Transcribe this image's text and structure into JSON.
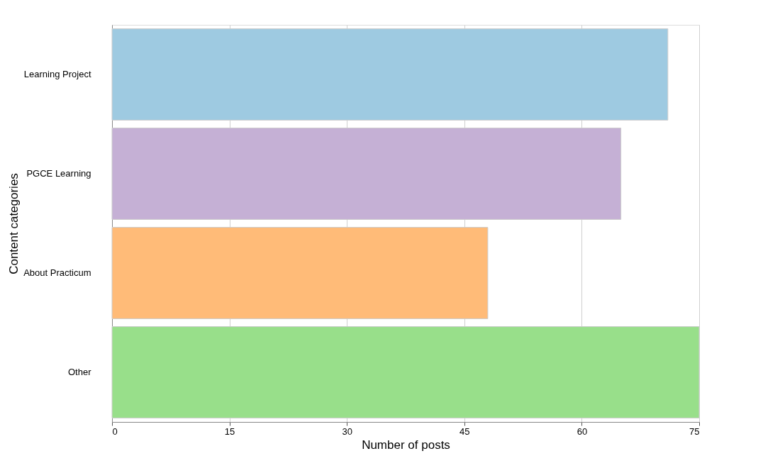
{
  "chart_data": {
    "type": "bar",
    "orientation": "horizontal",
    "xlabel": "Number of posts",
    "ylabel": "Content categories",
    "categories": [
      "Learning Project",
      "PGCE Learning",
      "About Practicum",
      "Other"
    ],
    "values": [
      71,
      65,
      48,
      75
    ],
    "colors": [
      "#9ecae1",
      "#c5b0d5",
      "#ffbb78",
      "#98df8a"
    ],
    "xlim": [
      0,
      75
    ],
    "xticks": [
      0,
      15,
      30,
      45,
      60,
      75
    ],
    "grid": "x"
  }
}
